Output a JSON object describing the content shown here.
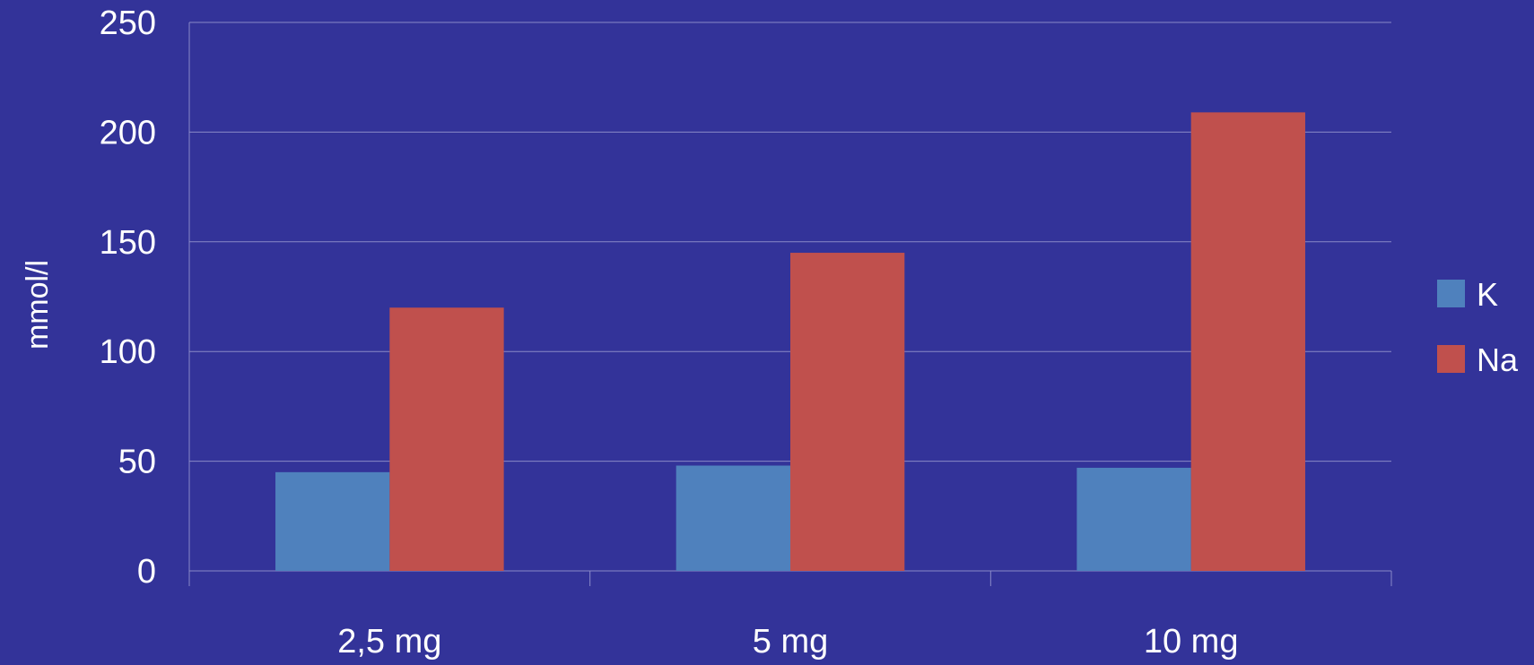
{
  "background_color": "#333399",
  "chart_data": {
    "type": "bar",
    "categories": [
      "2,5 mg",
      "5 mg",
      "10 mg"
    ],
    "series": [
      {
        "name": "K",
        "values": [
          45,
          48,
          47
        ],
        "color": "#4f81bd"
      },
      {
        "name": "Na",
        "values": [
          120,
          145,
          209
        ],
        "color": "#c0504d"
      }
    ],
    "title": "",
    "xlabel": "",
    "ylabel": "mmol/l",
    "ylim": [
      0,
      250
    ],
    "yticks": [
      "0",
      "50",
      "100",
      "150",
      "200",
      "250"
    ],
    "grid": true,
    "gridline_color": "#8a8ac8",
    "legend_position": "right"
  }
}
